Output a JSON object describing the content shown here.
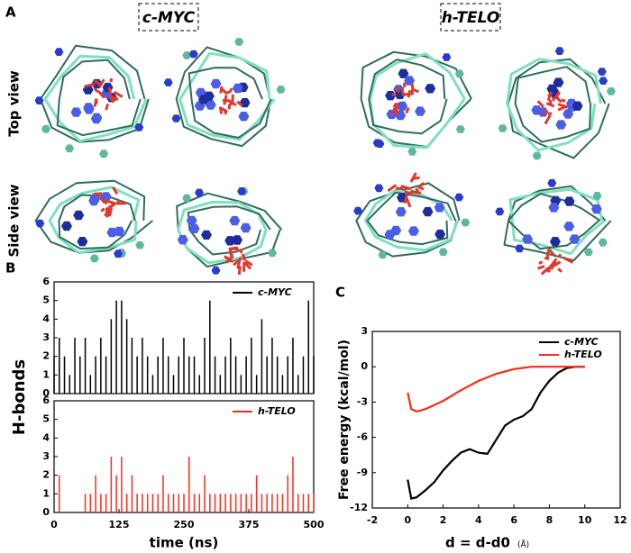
{
  "panel_a": {
    "label": "A",
    "titles": [
      "c-MYC",
      "h-TELO"
    ],
    "rows": [
      "Top view",
      "Side view"
    ]
  },
  "chart_data": [
    {
      "type": "bar",
      "panel_label": "B",
      "ylabel": "H-bonds",
      "xlim": [
        0,
        500
      ],
      "ylim": [
        0,
        6
      ],
      "yticks": [
        0,
        1,
        2,
        3,
        4,
        5,
        6
      ],
      "legend": "upper right",
      "x": [
        0,
        10,
        20,
        30,
        40,
        50,
        60,
        70,
        80,
        90,
        100,
        110,
        120,
        130,
        140,
        150,
        160,
        170,
        180,
        190,
        200,
        210,
        220,
        230,
        240,
        250,
        260,
        270,
        280,
        290,
        300,
        310,
        320,
        330,
        340,
        350,
        360,
        370,
        380,
        390,
        400,
        410,
        420,
        430,
        440,
        450,
        460,
        470,
        480,
        490,
        500
      ],
      "series": [
        {
          "name": "c-MYC",
          "color": "#000000",
          "values": [
            2,
            3,
            2,
            1,
            3,
            2,
            3,
            1,
            2,
            3,
            2,
            4,
            5,
            5,
            4,
            3,
            2,
            3,
            2,
            1,
            2,
            3,
            2,
            1,
            2,
            3,
            2,
            2,
            1,
            3,
            5,
            2,
            1,
            2,
            3,
            2,
            1,
            2,
            3,
            1,
            4,
            2,
            3,
            2,
            1,
            2,
            3,
            1,
            2,
            5,
            2
          ]
        }
      ]
    },
    {
      "type": "bar",
      "xlabel": "time (ns)",
      "xlim": [
        0,
        500
      ],
      "xticks": [
        0,
        125,
        250,
        375,
        500
      ],
      "ylim": [
        0,
        6
      ],
      "yticks": [
        0,
        1,
        2,
        3,
        4,
        5,
        6
      ],
      "legend": "upper right",
      "x": [
        0,
        10,
        20,
        30,
        40,
        50,
        60,
        70,
        80,
        90,
        100,
        110,
        120,
        130,
        140,
        150,
        160,
        170,
        180,
        190,
        200,
        210,
        220,
        230,
        240,
        250,
        260,
        270,
        280,
        290,
        300,
        310,
        320,
        330,
        340,
        350,
        360,
        370,
        380,
        390,
        400,
        410,
        420,
        430,
        440,
        450,
        460,
        470,
        480,
        490,
        500
      ],
      "series": [
        {
          "name": "h-TELO",
          "color": "#ff2a1a",
          "values": [
            0,
            2,
            0,
            0,
            0,
            0,
            1,
            1,
            2,
            1,
            1,
            3,
            2,
            3,
            1,
            2,
            1,
            1,
            1,
            1,
            1,
            2,
            1,
            1,
            1,
            1,
            3,
            1,
            1,
            2,
            1,
            1,
            1,
            1,
            1,
            1,
            1,
            1,
            1,
            2,
            1,
            1,
            1,
            1,
            1,
            2,
            3,
            1,
            1,
            1,
            1
          ]
        }
      ]
    },
    {
      "type": "line",
      "panel_label": "C",
      "xlabel": "d = d-d0",
      "xunit": "(Å)",
      "ylabel": "Free energy (kcal/mol)",
      "xlim": [
        -2,
        12
      ],
      "xticks": [
        -2,
        0,
        2,
        4,
        6,
        8,
        10,
        12
      ],
      "ylim": [
        -12,
        3
      ],
      "yticks": [
        -12,
        -9,
        -6,
        -3,
        0,
        3
      ],
      "legend": "upper right",
      "series": [
        {
          "name": "c-MYC",
          "color": "#000000",
          "x": [
            0,
            0.2,
            0.5,
            1,
            1.5,
            2,
            2.5,
            3,
            3.5,
            4,
            4.5,
            5,
            5.5,
            6,
            6.5,
            7,
            7.5,
            8,
            8.5,
            9,
            9.5,
            10
          ],
          "values": [
            -9.6,
            -11.2,
            -11.1,
            -10.5,
            -9.8,
            -8.8,
            -8,
            -7.3,
            -7,
            -7.3,
            -7.4,
            -6.2,
            -5,
            -4.5,
            -4.2,
            -3.6,
            -2.2,
            -1.2,
            -0.5,
            -0.1,
            0,
            0
          ]
        },
        {
          "name": "h-TELO",
          "color": "#ff2a1a",
          "x": [
            0,
            0.2,
            0.5,
            1,
            2,
            3,
            4,
            5,
            6,
            7,
            8,
            9,
            10
          ],
          "values": [
            -2.2,
            -3.6,
            -3.8,
            -3.6,
            -2.9,
            -2.0,
            -1.2,
            -0.6,
            -0.2,
            0,
            0,
            0,
            0
          ]
        }
      ]
    }
  ]
}
